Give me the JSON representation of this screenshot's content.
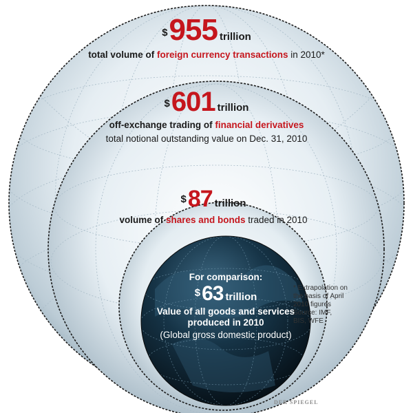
{
  "colors": {
    "accent": "#c5161d",
    "globe_dark": "#0d1e2a",
    "sphere_light": "#dfe9ef"
  },
  "outer": {
    "currency": "$",
    "amount": "955",
    "unit": "trillion",
    "desc_before": "total volume of ",
    "desc_highlight": "foreign currency transactions",
    "desc_after": " in 2010*"
  },
  "second": {
    "currency": "$",
    "amount": "601",
    "unit": "trillion",
    "desc_before": "off-exchange trading of ",
    "desc_highlight": "financial derivatives",
    "subline": "total notional outstanding value on Dec. 31, 2010"
  },
  "third": {
    "currency": "$",
    "amount": "87",
    "unit": "trillion",
    "desc_before": "volume of ",
    "desc_highlight": "shares and bonds",
    "desc_after": " traded in 2010"
  },
  "globe": {
    "intro": "For comparison:",
    "currency": "$",
    "amount": "63",
    "unit": "trillion",
    "line1": "Value of all goods and services",
    "line2": "produced in 2010",
    "line3": "(Global gross domestic product)"
  },
  "footnote": [
    "* Extrapolation on",
    "the basis of April",
    "2010 figures",
    "Source: IMF,",
    "BIS, WFE"
  ],
  "logo": "DER SPIEGEL",
  "icons": [
    "outer-sphere-icon",
    "derivatives-sphere-icon",
    "shares-sphere-icon",
    "earth-globe-icon"
  ]
}
